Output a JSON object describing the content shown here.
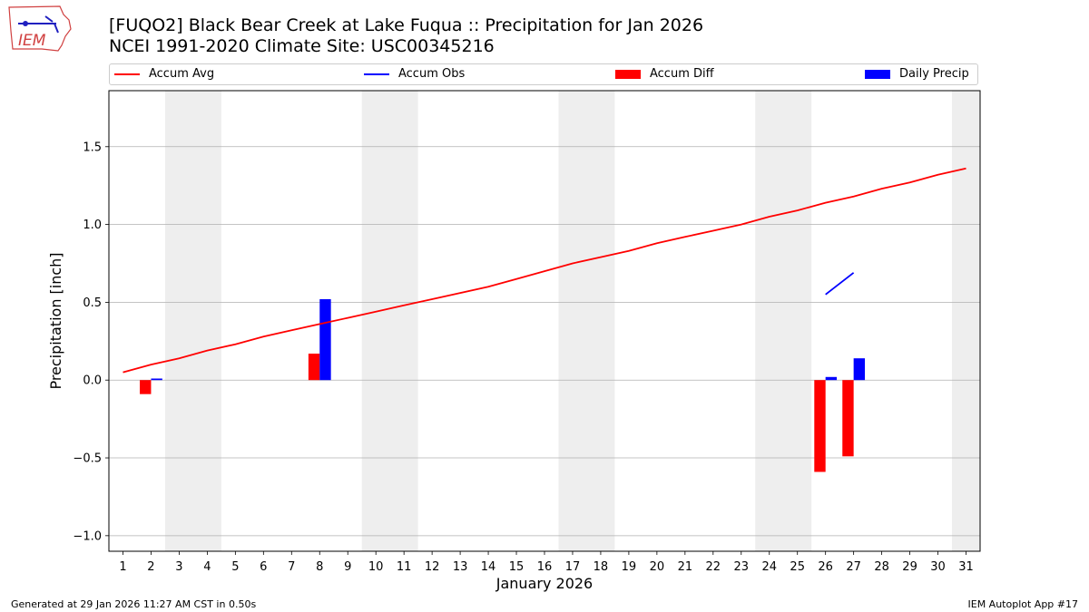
{
  "logo": {
    "text": "IEM"
  },
  "chart_data": {
    "type": "bar",
    "title": "[FUQO2] Black Bear Creek at Lake Fuqua :: Precipitation for Jan 2026",
    "subtitle": "NCEI 1991-2020 Climate Site: USC00345216",
    "xlabel": "January 2026",
    "ylabel": "Precipitation [inch]",
    "ylim": [
      -1.1,
      1.86
    ],
    "xlim": [
      0.5,
      31.5
    ],
    "yticks": [
      -1.0,
      -0.5,
      0.0,
      0.5,
      1.0,
      1.5
    ],
    "ytick_labels": [
      "−1.0",
      "−0.5",
      "0.0",
      "0.5",
      "1.0",
      "1.5"
    ],
    "x": [
      1,
      2,
      3,
      4,
      5,
      6,
      7,
      8,
      9,
      10,
      11,
      12,
      13,
      14,
      15,
      16,
      17,
      18,
      19,
      20,
      21,
      22,
      23,
      24,
      25,
      26,
      27,
      28,
      29,
      30,
      31
    ],
    "xtick_labels": [
      "1",
      "2",
      "3",
      "4",
      "5",
      "6",
      "7",
      "8",
      "9",
      "10",
      "11",
      "12",
      "13",
      "14",
      "15",
      "16",
      "17",
      "18",
      "19",
      "20",
      "21",
      "22",
      "23",
      "24",
      "25",
      "26",
      "27",
      "28",
      "29",
      "30",
      "31"
    ],
    "weekend_spans": [
      [
        2.5,
        4.5
      ],
      [
        9.5,
        11.5
      ],
      [
        16.5,
        18.5
      ],
      [
        23.5,
        25.5
      ],
      [
        30.5,
        31.5
      ]
    ],
    "grid": "horizontal",
    "series": [
      {
        "name": "Accum Avg",
        "kind": "line",
        "color": "#ff0000",
        "x": [
          1,
          2,
          3,
          4,
          5,
          6,
          7,
          8,
          9,
          10,
          11,
          12,
          13,
          14,
          15,
          16,
          17,
          18,
          19,
          20,
          21,
          22,
          23,
          24,
          25,
          26,
          27,
          28,
          29,
          30,
          31
        ],
        "values": [
          0.05,
          0.1,
          0.14,
          0.19,
          0.23,
          0.28,
          0.32,
          0.36,
          0.4,
          0.44,
          0.48,
          0.52,
          0.56,
          0.6,
          0.65,
          0.7,
          0.75,
          0.79,
          0.83,
          0.88,
          0.92,
          0.96,
          1.0,
          1.05,
          1.09,
          1.14,
          1.18,
          1.23,
          1.27,
          1.32,
          1.36
        ]
      },
      {
        "name": "Accum Obs",
        "kind": "line",
        "color": "#0000ff",
        "x": [
          26,
          27
        ],
        "values": [
          0.55,
          0.69
        ]
      },
      {
        "name": "Accum Diff",
        "kind": "bar",
        "color": "#ff0000",
        "offset": -0.2,
        "x": [
          2,
          8,
          26,
          27
        ],
        "values": [
          -0.09,
          0.17,
          -0.59,
          -0.49
        ]
      },
      {
        "name": "Daily Precip",
        "kind": "bar",
        "color": "#0000ff",
        "offset": 0.2,
        "x": [
          2,
          8,
          26,
          27
        ],
        "values": [
          0.01,
          0.52,
          0.02,
          0.14
        ]
      }
    ],
    "legend_position": "top"
  },
  "footer": {
    "left": "Generated at 29 Jan 2026 11:27 AM CST in 0.50s",
    "right": "IEM Autoplot App #17"
  }
}
